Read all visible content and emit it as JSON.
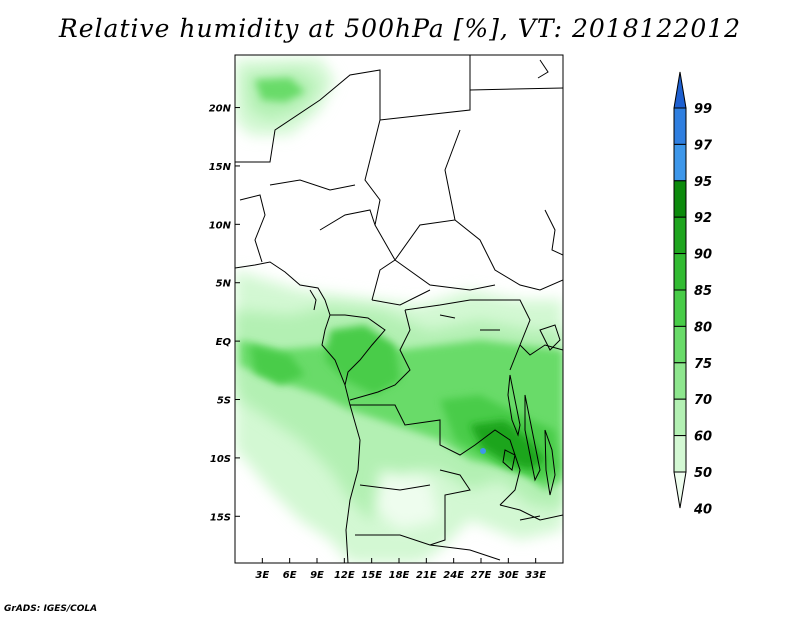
{
  "title": "Relative humidity at 500hPa [%], VT: 2018122012",
  "credit": "GrADS: IGES/COLA",
  "map": {
    "lon_range": [
      0,
      36
    ],
    "lat_range": [
      -19,
      24.5
    ],
    "lon_ticks": [
      "3E",
      "6E",
      "9E",
      "12E",
      "15E",
      "18E",
      "21E",
      "24E",
      "27E",
      "30E",
      "33E"
    ],
    "lon_tick_values": [
      3,
      6,
      9,
      12,
      15,
      18,
      21,
      24,
      27,
      30,
      33
    ],
    "lat_ticks": [
      "20N",
      "15N",
      "10N",
      "5N",
      "EQ",
      "5S",
      "10S",
      "15S"
    ],
    "lat_tick_values": [
      20,
      15,
      10,
      5,
      0,
      -5,
      -10,
      -15
    ]
  },
  "colorbar": {
    "levels": [
      "99",
      "97",
      "95",
      "92",
      "90",
      "85",
      "80",
      "75",
      "70",
      "60",
      "50",
      "40"
    ],
    "colors": [
      "#1e60d0",
      "#2f7fe0",
      "#3e97ea",
      "#0c8a0c",
      "#1ea51e",
      "#32bb32",
      "#48cc48",
      "#69db69",
      "#8ee68e",
      "#b3f0b3",
      "#d3f8d3",
      "#eefdee"
    ]
  }
}
